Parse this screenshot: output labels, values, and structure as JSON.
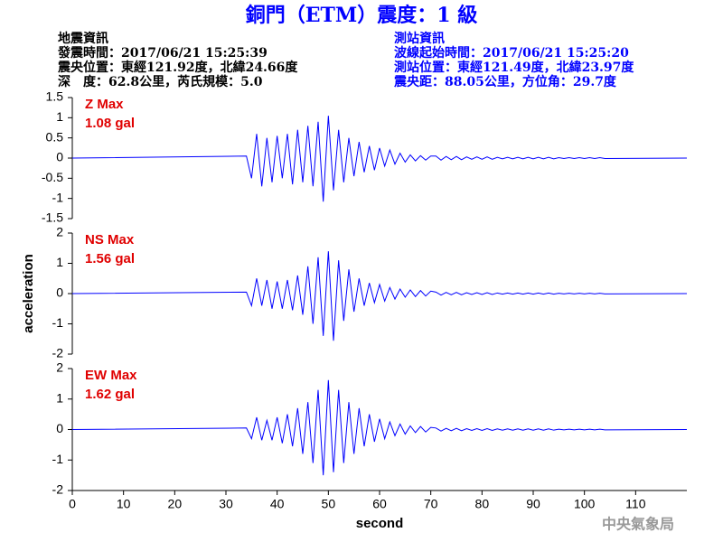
{
  "header": {
    "title": "銅門（ETM）震度：1 級",
    "left": [
      "地震資訊",
      "發震時間：2017/06/21 15:25:39",
      "震央位置：東經121.92度，北緯24.66度",
      "深　度：62.8公里，芮氏規模：5.0"
    ],
    "right": [
      "測站資訊",
      "波線起始時間：2017/06/21 15:25:20",
      "測站位置：東經121.49度，北緯23.97度",
      "震央距：88.05公里，方位角：29.7度"
    ],
    "footer": "中央氣象局"
  },
  "chart_data": [
    {
      "type": "line",
      "xlim": [
        0,
        120
      ],
      "ylim": [
        -1.5,
        1.5
      ],
      "yticks": [
        -1.5,
        -1,
        -0.5,
        0,
        0.5,
        1,
        1.5
      ],
      "x": [
        0,
        34,
        35,
        36,
        37,
        38,
        39,
        40,
        41,
        42,
        43,
        44,
        45,
        46,
        47,
        48,
        49,
        50,
        51,
        52,
        53,
        54,
        55,
        56,
        57,
        58,
        59,
        60,
        61,
        62,
        63,
        64,
        65,
        66,
        67,
        68,
        69,
        70,
        71,
        72,
        73,
        74,
        75,
        76,
        77,
        78,
        79,
        80,
        81,
        82,
        83,
        84,
        85,
        86,
        87,
        88,
        89,
        90,
        91,
        92,
        93,
        94,
        95,
        96,
        97,
        98,
        99,
        100,
        101,
        102,
        103,
        104,
        120
      ],
      "series": [
        {
          "name": "Z Max",
          "annotation": "1.08 gal",
          "color": "#0000ff",
          "values": [
            0,
            0.05,
            -0.5,
            0.6,
            -0.7,
            0.5,
            -0.6,
            0.55,
            -0.5,
            0.6,
            -0.65,
            0.7,
            -0.6,
            0.8,
            -0.7,
            0.9,
            -1.08,
            1.05,
            -0.8,
            0.7,
            -0.6,
            0.5,
            -0.45,
            0.4,
            -0.35,
            0.3,
            -0.3,
            0.25,
            -0.2,
            0.2,
            -0.15,
            0.12,
            -0.1,
            0.08,
            -0.07,
            0.06,
            -0.05,
            0.05,
            0.05,
            -0.05,
            0.04,
            -0.04,
            0.04,
            -0.04,
            0.03,
            -0.03,
            0.03,
            -0.03,
            0.03,
            -0.03,
            0.02,
            -0.02,
            0.02,
            -0.02,
            0.02,
            -0.02,
            0.02,
            -0.02,
            0.02,
            -0.02,
            0.02,
            -0.02,
            0.01,
            -0.01,
            0.01,
            -0.01,
            0.01,
            -0.01,
            0.01,
            -0.01,
            0.01,
            -0.01,
            0
          ]
        }
      ]
    },
    {
      "type": "line",
      "xlim": [
        0,
        120
      ],
      "ylim": [
        -2,
        2
      ],
      "yticks": [
        -2,
        -1,
        0,
        1,
        2
      ],
      "ylabel": "acceleration",
      "x": [
        0,
        34,
        35,
        36,
        37,
        38,
        39,
        40,
        41,
        42,
        43,
        44,
        45,
        46,
        47,
        48,
        49,
        50,
        51,
        52,
        53,
        54,
        55,
        56,
        57,
        58,
        59,
        60,
        61,
        62,
        63,
        64,
        65,
        66,
        67,
        68,
        69,
        70,
        71,
        72,
        73,
        74,
        75,
        76,
        77,
        78,
        79,
        80,
        81,
        82,
        83,
        84,
        85,
        86,
        87,
        88,
        89,
        90,
        91,
        92,
        93,
        94,
        95,
        96,
        97,
        98,
        99,
        100,
        101,
        102,
        103,
        104,
        120
      ],
      "series": [
        {
          "name": "NS Max",
          "annotation": "1.56 gal",
          "color": "#0000ff",
          "values": [
            0,
            0.05,
            -0.4,
            0.5,
            -0.4,
            0.45,
            -0.5,
            0.4,
            -0.5,
            0.45,
            -0.55,
            0.6,
            -0.7,
            0.9,
            -1.0,
            1.2,
            -1.4,
            1.4,
            -1.56,
            1.1,
            -0.9,
            0.8,
            -0.6,
            0.5,
            -0.4,
            0.35,
            -0.3,
            0.3,
            -0.25,
            0.2,
            -0.18,
            0.15,
            -0.12,
            0.12,
            -0.1,
            0.1,
            -0.08,
            0.08,
            0.05,
            -0.05,
            0.04,
            -0.04,
            0.04,
            -0.04,
            0.03,
            -0.03,
            0.03,
            -0.03,
            0.03,
            -0.03,
            0.02,
            -0.02,
            0.02,
            -0.02,
            0.02,
            -0.02,
            0.02,
            -0.02,
            0.02,
            -0.02,
            0.02,
            -0.02,
            0.01,
            -0.01,
            0.01,
            -0.01,
            0.01,
            -0.01,
            0.01,
            -0.01,
            0.01,
            -0.01,
            0
          ]
        }
      ]
    },
    {
      "type": "line",
      "xlim": [
        0,
        120
      ],
      "ylim": [
        -2,
        2
      ],
      "yticks": [
        -2,
        -1,
        0,
        1,
        2
      ],
      "xticks": [
        0,
        10,
        20,
        30,
        40,
        50,
        60,
        70,
        80,
        90,
        100,
        110
      ],
      "xlabel": "second",
      "x": [
        0,
        34,
        35,
        36,
        37,
        38,
        39,
        40,
        41,
        42,
        43,
        44,
        45,
        46,
        47,
        48,
        49,
        50,
        51,
        52,
        53,
        54,
        55,
        56,
        57,
        58,
        59,
        60,
        61,
        62,
        63,
        64,
        65,
        66,
        67,
        68,
        69,
        70,
        71,
        72,
        73,
        74,
        75,
        76,
        77,
        78,
        79,
        80,
        81,
        82,
        83,
        84,
        85,
        86,
        87,
        88,
        89,
        90,
        91,
        92,
        93,
        94,
        95,
        96,
        97,
        98,
        99,
        100,
        101,
        102,
        103,
        104,
        120
      ],
      "series": [
        {
          "name": "EW Max",
          "annotation": "1.62 gal",
          "color": "#0000ff",
          "values": [
            0,
            0.05,
            -0.3,
            0.4,
            -0.35,
            0.3,
            -0.35,
            0.4,
            -0.45,
            0.5,
            -0.55,
            0.7,
            -0.8,
            0.9,
            -1.1,
            1.3,
            -1.5,
            1.62,
            -1.4,
            1.3,
            -1.1,
            0.9,
            -0.8,
            0.7,
            -0.55,
            0.5,
            -0.4,
            0.35,
            -0.3,
            0.25,
            -0.2,
            0.18,
            -0.15,
            0.12,
            -0.1,
            0.1,
            -0.08,
            0.07,
            0.05,
            -0.05,
            0.04,
            -0.04,
            0.04,
            -0.04,
            0.03,
            -0.03,
            0.03,
            -0.03,
            0.03,
            -0.03,
            0.02,
            -0.02,
            0.02,
            -0.02,
            0.02,
            -0.02,
            0.02,
            -0.02,
            0.02,
            -0.02,
            0.02,
            -0.02,
            0.01,
            -0.01,
            0.01,
            -0.01,
            0.01,
            -0.01,
            0.01,
            -0.01,
            0.01,
            -0.01,
            0
          ]
        }
      ]
    }
  ]
}
